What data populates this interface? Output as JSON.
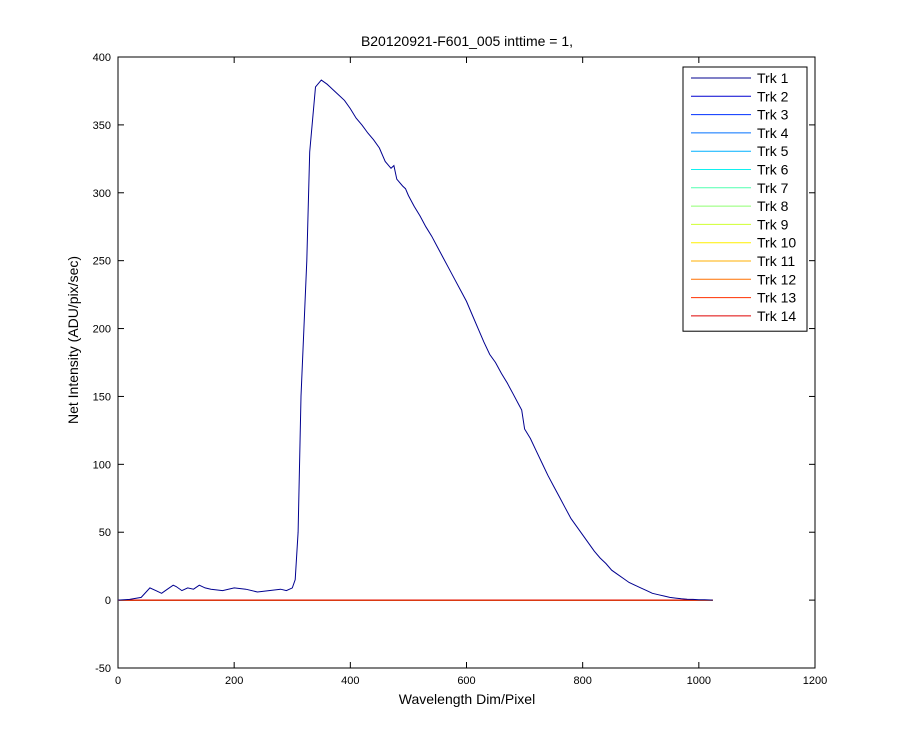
{
  "chart_data": {
    "type": "line",
    "title": "B20120921-F601_005 inttime = 1,",
    "xlabel": "Wavelength Dim/Pixel",
    "ylabel": "Net Intensity (ADU/pix/sec)",
    "xlim": [
      0,
      1200
    ],
    "ylim": [
      -50,
      400
    ],
    "xticks": [
      "0",
      "200",
      "400",
      "600",
      "800",
      "1000",
      "1200"
    ],
    "yticks": [
      "-50",
      "0",
      "50",
      "100",
      "150",
      "200",
      "250",
      "300",
      "350",
      "400"
    ],
    "legend_position": "top-right",
    "grid": false,
    "series": [
      {
        "name": "Trk 1",
        "color": "#00008F",
        "x": [
          0,
          20,
          40,
          55,
          65,
          75,
          85,
          95,
          100,
          110,
          120,
          130,
          140,
          150,
          160,
          180,
          200,
          220,
          240,
          260,
          280,
          290,
          300,
          305,
          310,
          315,
          320,
          325,
          330,
          340,
          350,
          360,
          365,
          370,
          380,
          390,
          400,
          410,
          420,
          430,
          440,
          450,
          460,
          470,
          475,
          480,
          490,
          495,
          500,
          510,
          520,
          530,
          540,
          550,
          560,
          570,
          580,
          590,
          600,
          610,
          620,
          630,
          640,
          650,
          660,
          670,
          680,
          690,
          695,
          700,
          710,
          720,
          730,
          740,
          750,
          760,
          770,
          780,
          790,
          800,
          810,
          820,
          830,
          840,
          850,
          860,
          870,
          880,
          890,
          900,
          910,
          920,
          930,
          940,
          950,
          960,
          970,
          980,
          990,
          1000,
          1010,
          1020,
          1024
        ],
        "y": [
          0,
          0.5,
          2,
          9,
          7,
          5,
          8,
          11,
          10,
          7,
          9,
          8,
          11,
          9,
          8,
          7,
          9,
          8,
          6,
          7,
          8,
          7,
          9,
          15,
          50,
          150,
          200,
          250,
          330,
          378,
          383,
          380,
          378,
          376,
          372,
          368,
          362,
          355,
          350,
          344,
          339,
          333,
          323,
          318,
          320,
          310,
          305,
          303,
          298,
          290,
          283,
          275,
          268,
          260,
          252,
          244,
          236,
          228,
          220,
          210,
          200,
          190,
          181,
          175,
          167,
          160,
          152,
          144,
          140,
          126,
          119,
          110,
          101,
          92,
          84,
          76,
          68,
          60,
          54,
          48,
          42,
          36,
          31,
          27,
          22,
          19,
          16,
          13,
          11,
          9,
          7,
          5,
          4,
          3,
          2,
          1.5,
          1,
          0.7,
          0.5,
          0.3,
          0.2,
          0.1,
          0
        ]
      },
      {
        "name": "Trk 2",
        "color": "#0000D0",
        "x": [
          0,
          1024
        ],
        "y": [
          0,
          0
        ]
      },
      {
        "name": "Trk 3",
        "color": "#0030FF",
        "x": [
          0,
          1024
        ],
        "y": [
          0,
          0
        ]
      },
      {
        "name": "Trk 4",
        "color": "#0070FF",
        "x": [
          0,
          1024
        ],
        "y": [
          0,
          0
        ]
      },
      {
        "name": "Trk 5",
        "color": "#00B0FF",
        "x": [
          0,
          1024
        ],
        "y": [
          0,
          0
        ]
      },
      {
        "name": "Trk 6",
        "color": "#10F0EF",
        "x": [
          0,
          1024
        ],
        "y": [
          0,
          0
        ]
      },
      {
        "name": "Trk 7",
        "color": "#50FFAF",
        "x": [
          0,
          1024
        ],
        "y": [
          0,
          0
        ]
      },
      {
        "name": "Trk 8",
        "color": "#8FFF70",
        "x": [
          0,
          1024
        ],
        "y": [
          0,
          0
        ]
      },
      {
        "name": "Trk 9",
        "color": "#CFFF30",
        "x": [
          0,
          1024
        ],
        "y": [
          0,
          0
        ]
      },
      {
        "name": "Trk 10",
        "color": "#FFEF00",
        "x": [
          0,
          1024
        ],
        "y": [
          0,
          0
        ]
      },
      {
        "name": "Trk 11",
        "color": "#FFAF00",
        "x": [
          0,
          1024
        ],
        "y": [
          0,
          0
        ]
      },
      {
        "name": "Trk 12",
        "color": "#FF7000",
        "x": [
          0,
          1024
        ],
        "y": [
          0,
          0
        ]
      },
      {
        "name": "Trk 13",
        "color": "#FF3000",
        "x": [
          0,
          1024
        ],
        "y": [
          0,
          0
        ]
      },
      {
        "name": "Trk 14",
        "color": "#DF0000",
        "x": [
          0,
          1024
        ],
        "y": [
          0,
          0
        ]
      }
    ]
  }
}
